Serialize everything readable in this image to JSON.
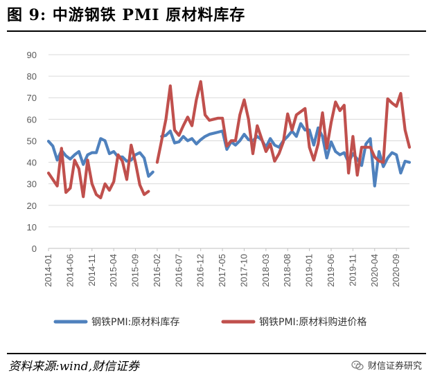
{
  "figure_title": "图 9:   中游钢铁 PMI 原材料库存",
  "source_text": "资料来源:wind,财信证券",
  "brand_text": "财信证券研究",
  "colors": {
    "blue": "#4f81bd",
    "red": "#c0504d",
    "grid": "#d9d9d9",
    "axis": "#bfbfbf",
    "tick": "#595959"
  },
  "chart_data": {
    "type": "line",
    "title": "中游钢铁 PMI 原材料库存",
    "xlabel": "",
    "ylabel": "",
    "ylim": [
      0,
      90
    ],
    "yticks": [
      0,
      10,
      20,
      30,
      40,
      50,
      60,
      70,
      80,
      90
    ],
    "grid": true,
    "legend_position": "bottom",
    "x_tick_labels": [
      "2014-01",
      "2014-06",
      "2014-11",
      "2015-04",
      "2015-09",
      "2016-02",
      "2016-07",
      "2016-12",
      "2017-05",
      "2017-10",
      "2018-03",
      "2018-08",
      "2019-01",
      "2019-06",
      "2019-11",
      "2020-04",
      "2020-09"
    ],
    "x_start": "2014-01",
    "x_end": "2020-10",
    "gap_months": [
      "2016-01"
    ],
    "series": [
      {
        "name": "钢铁PMI:原材料库存",
        "color": "#4f81bd",
        "values": [
          49.8,
          47.5,
          41.0,
          45.5,
          43.0,
          41.5,
          43.5,
          45.0,
          39.0,
          43.5,
          44.5,
          44.5,
          51.0,
          50.0,
          44.0,
          45.0,
          42.5,
          42.5,
          40.5,
          41.0,
          43.5,
          44.5,
          42.0,
          33.5,
          35.5,
          null,
          52.0,
          52.5,
          54.5,
          49.0,
          49.5,
          52.0,
          50.0,
          51.0,
          48.5,
          50.5,
          52.0,
          53.0,
          53.5,
          54.0,
          54.5,
          46.0,
          49.5,
          48.0,
          50.0,
          53.0,
          50.5,
          50.0,
          52.0,
          50.5,
          47.0,
          51.0,
          48.0,
          47.0,
          50.0,
          52.0,
          54.5,
          52.0,
          58.0,
          55.0,
          55.0,
          48.0,
          56.0,
          52.0,
          42.0,
          49.5,
          45.0,
          43.5,
          44.5,
          40.0,
          44.0,
          41.5,
          38.5,
          48.5,
          51.0,
          29.0,
          45.0,
          38.0,
          42.0,
          44.5,
          43.5,
          35.0,
          40.5,
          40.0
        ]
      },
      {
        "name": "钢铁PMI:原材料购进价格",
        "color": "#c0504d",
        "values": [
          35.0,
          32.0,
          29.0,
          46.5,
          26.0,
          28.0,
          41.0,
          37.0,
          24.0,
          41.0,
          30.0,
          25.0,
          23.5,
          30.0,
          27.0,
          31.0,
          43.5,
          40.5,
          32.0,
          48.0,
          40.0,
          29.5,
          25.0,
          26.5,
          null,
          40.0,
          50.0,
          60.0,
          75.5,
          55.0,
          52.5,
          57.0,
          61.0,
          57.0,
          69.0,
          77.5,
          62.0,
          59.5,
          60.0,
          60.5,
          60.5,
          47.5,
          50.0,
          50.0,
          62.0,
          69.0,
          60.0,
          44.0,
          57.0,
          51.0,
          45.0,
          48.5,
          40.5,
          44.0,
          49.5,
          62.5,
          55.0,
          62.0,
          63.5,
          65.0,
          47.0,
          41.0,
          48.5,
          63.0,
          46.5,
          58.5,
          68.0,
          64.0,
          66.5,
          35.0,
          52.0,
          34.0,
          47.0,
          47.0,
          47.0,
          42.5,
          40.5,
          40.0,
          69.5,
          67.5,
          66.0,
          72.0,
          55.0,
          47.0
        ]
      }
    ]
  }
}
